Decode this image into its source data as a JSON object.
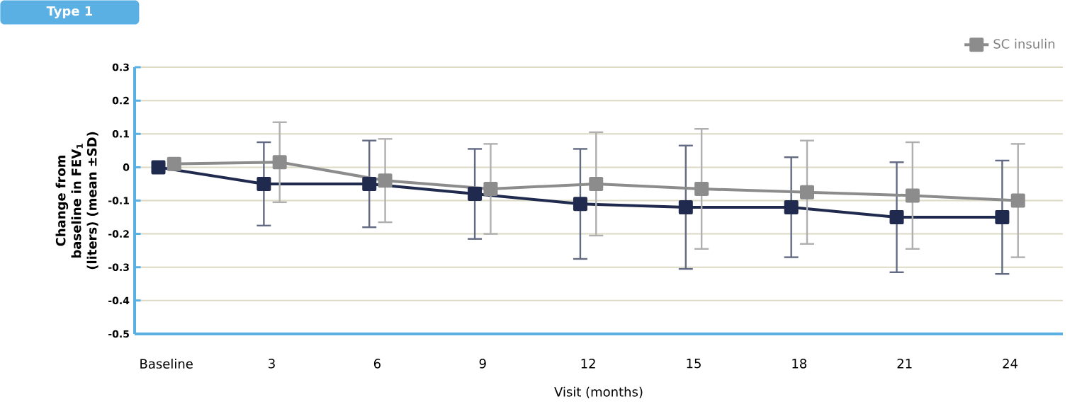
{
  "chart_data": {
    "type": "line",
    "title": "Type 1",
    "xlabel": "Visit (months)",
    "ylabel": "Change from baseline in FEV$_{1}$ (liters) (mean ±SD)",
    "categories": [
      "Baseline",
      "3",
      "6",
      "9",
      "12",
      "15",
      "18",
      "21",
      "24"
    ],
    "series": [
      {
        "color": "#1f2a4e",
        "values": [
          0,
          -0.05,
          -0.05,
          -0.08,
          -0.11,
          -0.12,
          -0.12,
          -0.15,
          -0.15
        ],
        "errors": [
          null,
          0.125,
          0.13,
          0.135,
          0.165,
          0.185,
          0.15,
          0.165,
          0.17
        ]
      },
      {
        "name": "SC insulin",
        "color": "#8c8c8c",
        "values": [
          0.01,
          0.015,
          -0.04,
          -0.065,
          -0.05,
          -0.065,
          -0.075,
          -0.085,
          -0.1
        ],
        "errors": [
          null,
          0.12,
          0.125,
          0.135,
          0.155,
          0.18,
          0.155,
          0.16,
          0.17
        ]
      }
    ],
    "ylim": [
      -0.5,
      0.3
    ],
    "yticks": [
      -0.5,
      -0.4,
      -0.3,
      -0.2,
      -0.1,
      0,
      0.1,
      0.2,
      0.3
    ],
    "grid": "y",
    "legend": "top",
    "marker": "square"
  }
}
